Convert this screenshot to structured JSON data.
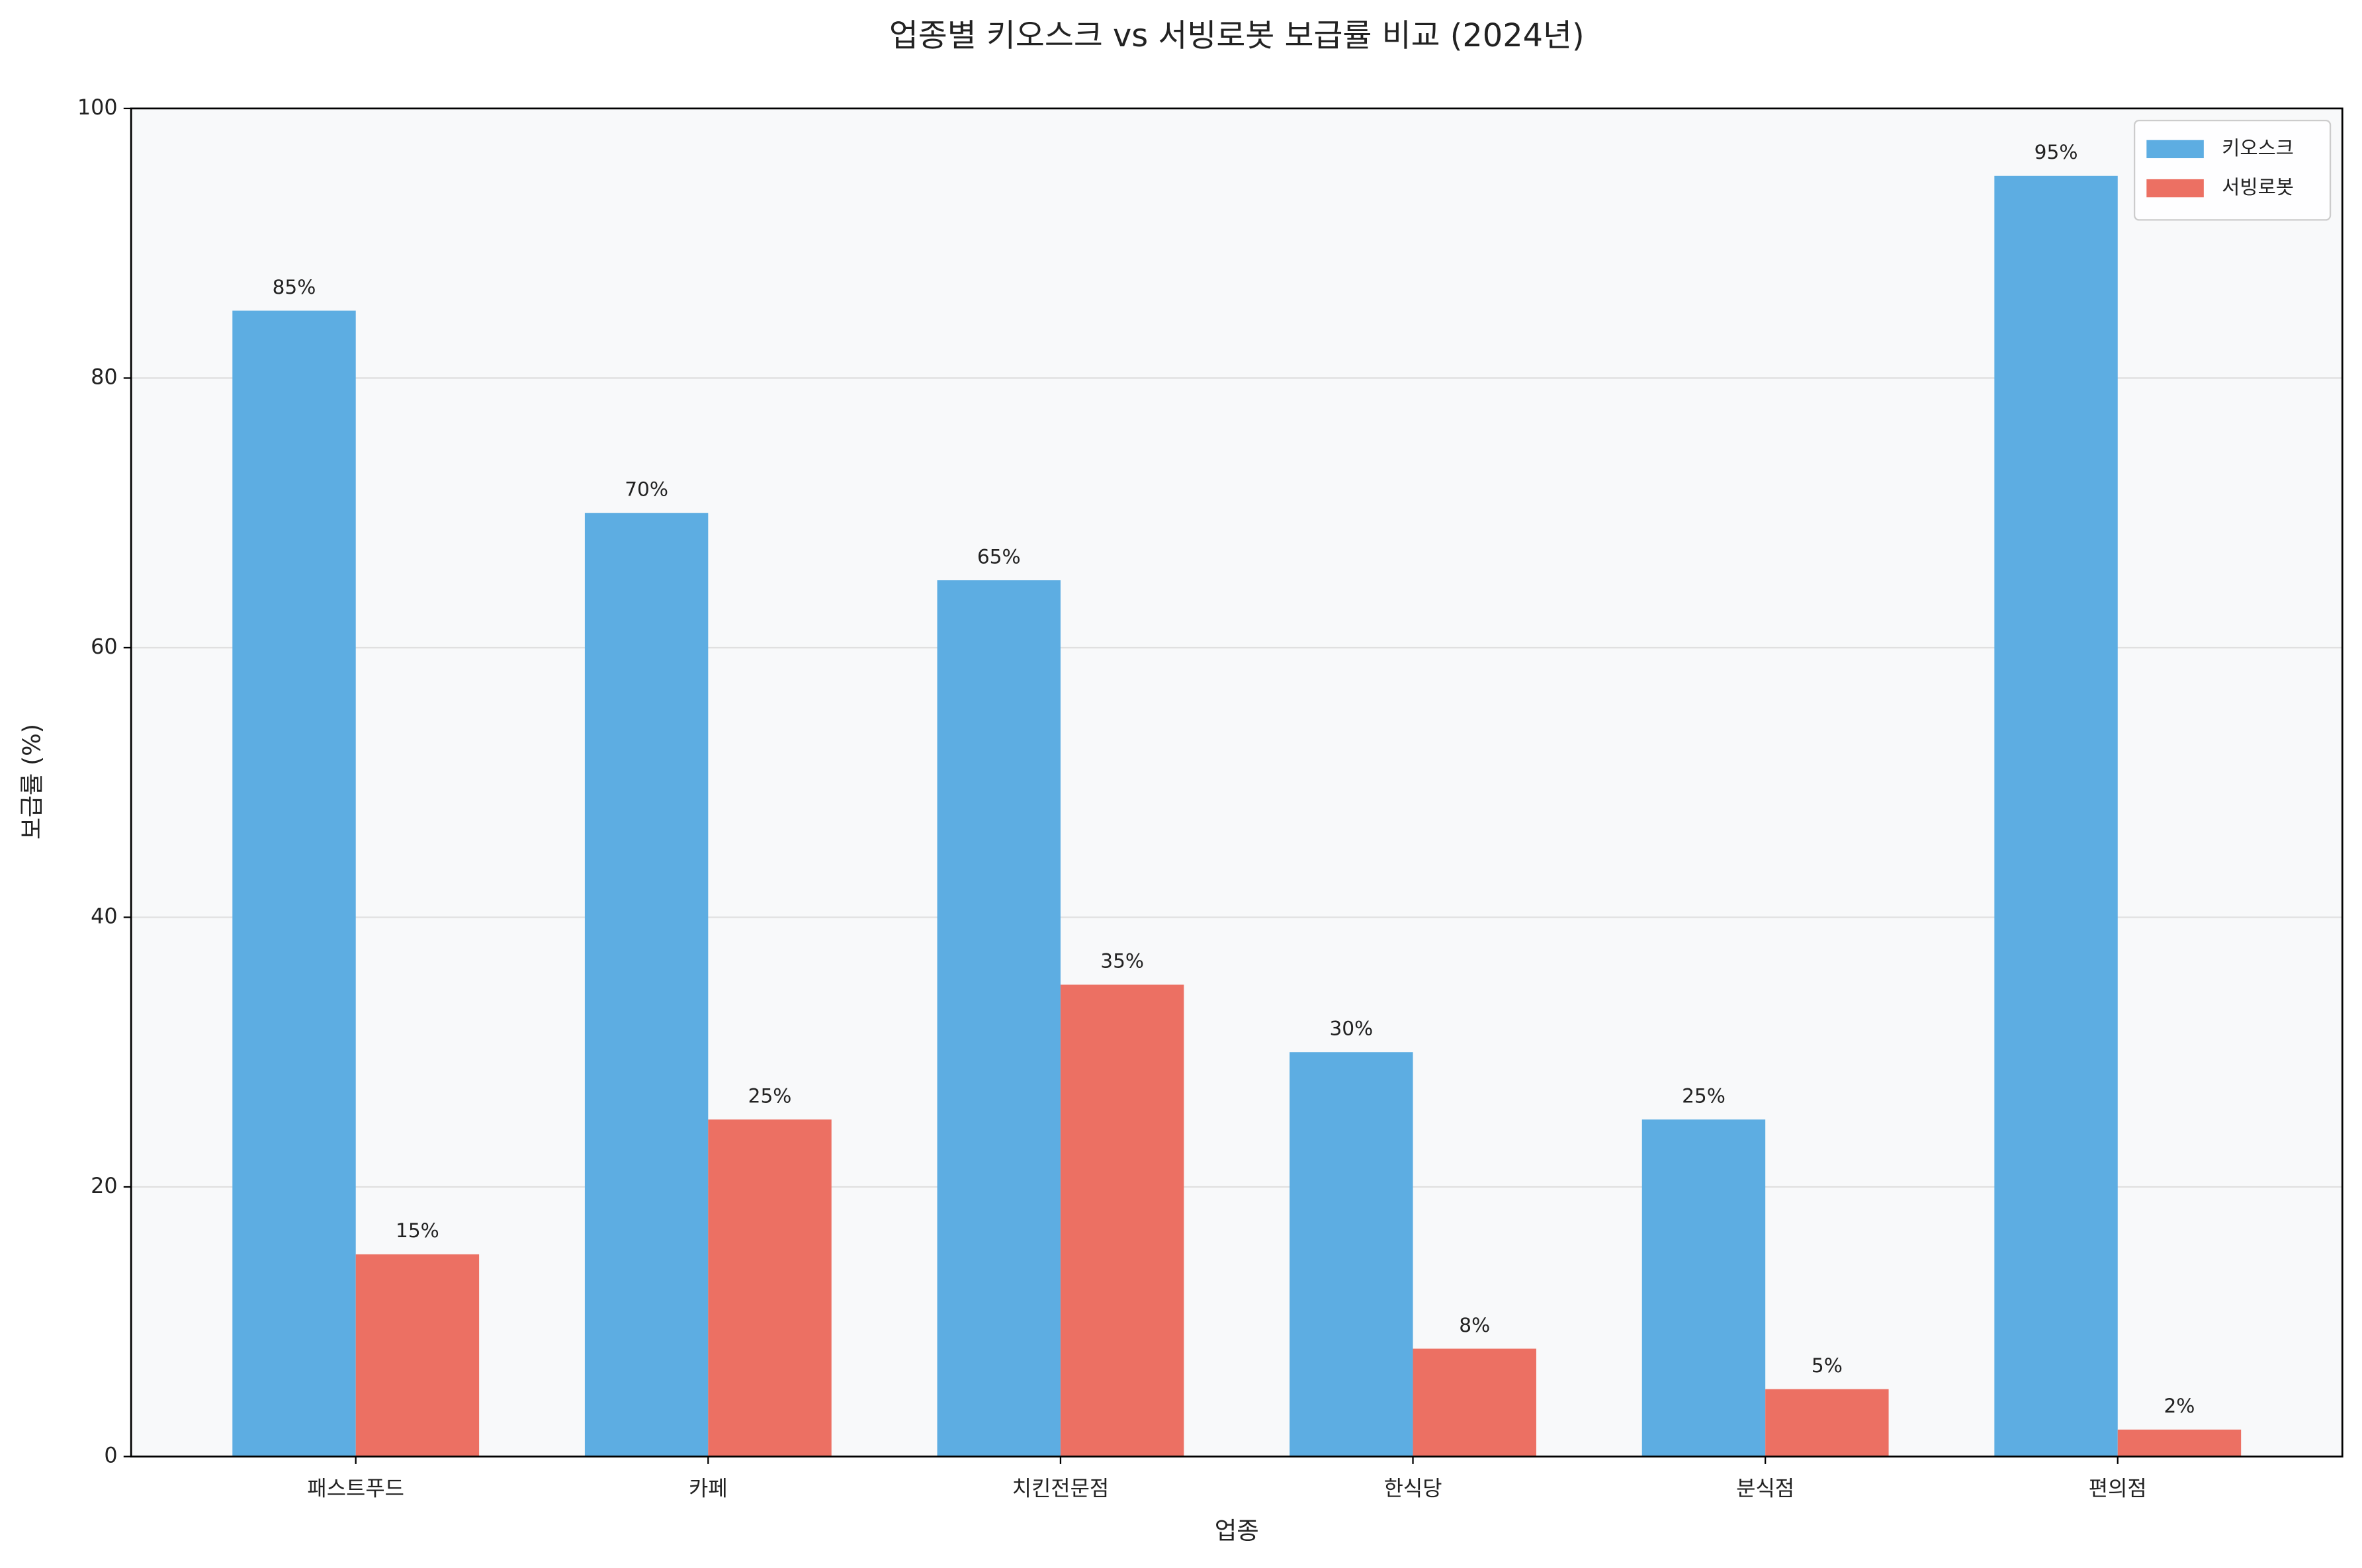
{
  "chart_data": {
    "type": "bar",
    "title": "업종별 키오스크 vs 서빙로봇 보급률 비교 (2024년)",
    "x_label": "업종",
    "y_label": "보급률 (%)",
    "categories": [
      "패스트푸드",
      "카페",
      "치킨전문점",
      "한식당",
      "분식점",
      "편의점"
    ],
    "series": [
      {
        "name": "키오스크",
        "color": "#5dade2",
        "values": [
          85,
          70,
          65,
          30,
          25,
          95
        ],
        "value_labels": [
          "85%",
          "70%",
          "65%",
          "30%",
          "25%",
          "95%"
        ]
      },
      {
        "name": "서빙로봇",
        "color": "#ec7063",
        "values": [
          15,
          25,
          35,
          8,
          5,
          2
        ],
        "value_labels": [
          "15%",
          "25%",
          "35%",
          "8%",
          "5%",
          "2%"
        ]
      }
    ],
    "ylim": [
      0,
      100
    ],
    "yticks": [
      0,
      20,
      40,
      60,
      80,
      100
    ],
    "grid": true,
    "legend": "upper right"
  }
}
